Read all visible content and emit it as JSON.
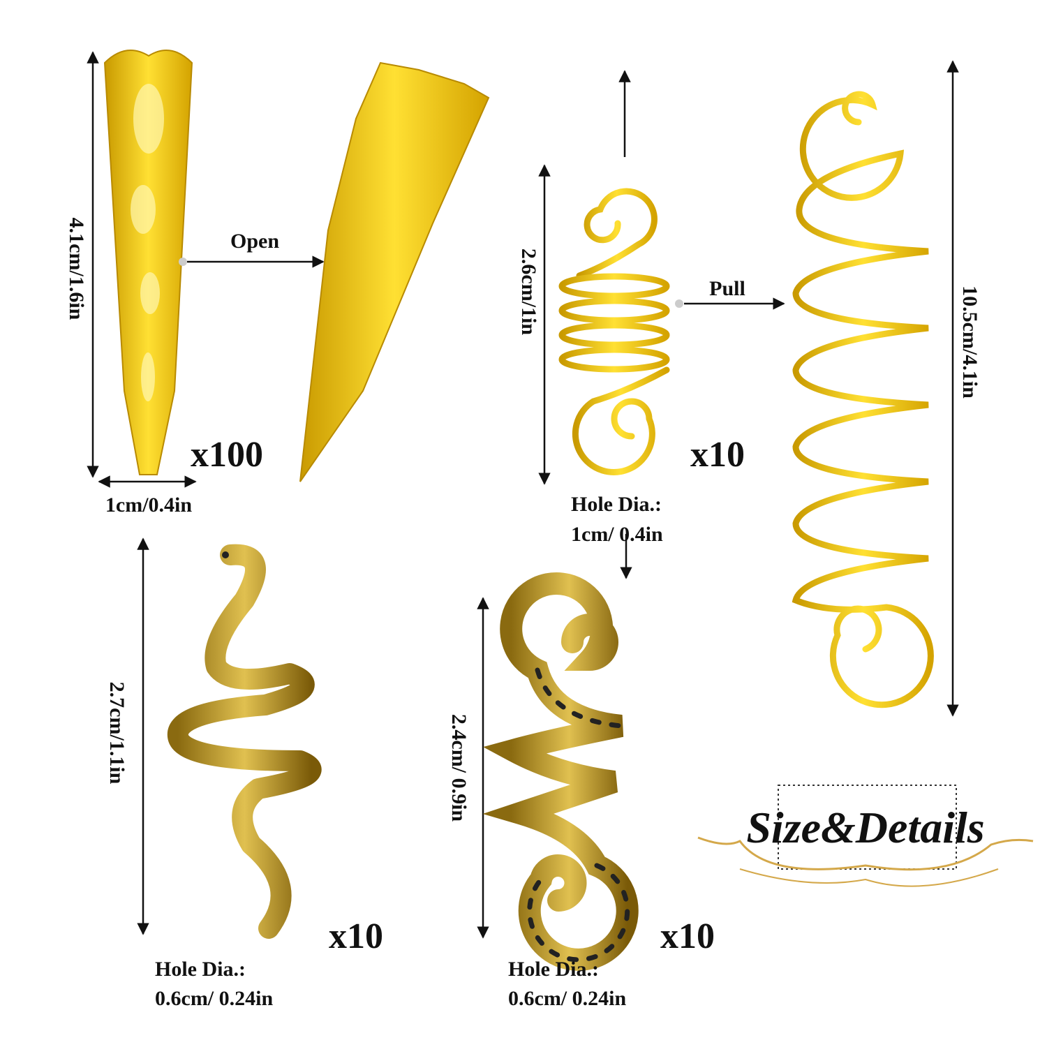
{
  "cone": {
    "height": "4.1cm/1.6in",
    "width": "1cm/0.4in",
    "action": "Open",
    "quantity": "x100"
  },
  "coil": {
    "height": "2.6cm/1in",
    "action": "Pull",
    "quantity": "x10",
    "hole_label": "Hole Dia.:",
    "hole_size": "1cm/ 0.4in",
    "extended_height": "10.5cm/4.1in"
  },
  "snake": {
    "height": "2.7cm/1.1in",
    "quantity": "x10",
    "hole_label": "Hole Dia.:",
    "hole_size": "0.6cm/ 0.24in"
  },
  "swirl": {
    "height": "2.4cm/ 0.9in",
    "quantity": "x10",
    "hole_label": "Hole Dia.:",
    "hole_size": "0.6cm/ 0.24in"
  },
  "badge": {
    "title": "Size&Details"
  }
}
